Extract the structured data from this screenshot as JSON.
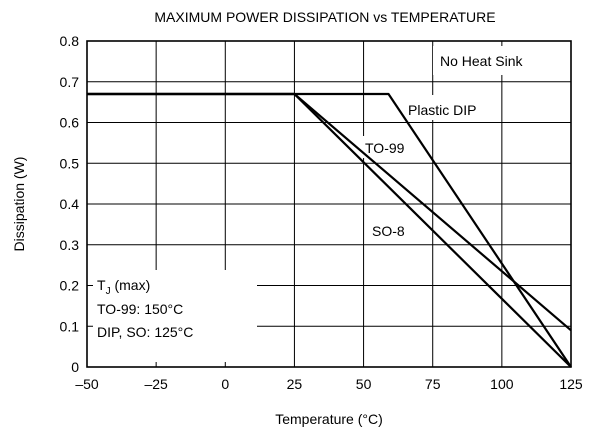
{
  "chart_data": {
    "type": "line",
    "title": "MAXIMUM POWER DISSIPATION vs TEMPERATURE",
    "xlabel": "Temperature (°C)",
    "ylabel": "Dissipation (W)",
    "xlim": [
      -50,
      125
    ],
    "ylim": [
      0,
      0.8
    ],
    "grid": true,
    "x_ticks": [
      {
        "value": -50,
        "label": "–50"
      },
      {
        "value": -25,
        "label": "–25"
      },
      {
        "value": 0,
        "label": "0"
      },
      {
        "value": 25,
        "label": "25"
      },
      {
        "value": 50,
        "label": "50"
      },
      {
        "value": 75,
        "label": "75"
      },
      {
        "value": 100,
        "label": "100"
      },
      {
        "value": 125,
        "label": "125"
      }
    ],
    "y_ticks": [
      {
        "value": 0,
        "label": "0"
      },
      {
        "value": 0.1,
        "label": "0.1"
      },
      {
        "value": 0.2,
        "label": "0.2"
      },
      {
        "value": 0.3,
        "label": "0.3"
      },
      {
        "value": 0.4,
        "label": "0.4"
      },
      {
        "value": 0.5,
        "label": "0.5"
      },
      {
        "value": 0.6,
        "label": "0.6"
      },
      {
        "value": 0.7,
        "label": "0.7"
      },
      {
        "value": 0.8,
        "label": "0.8"
      }
    ],
    "series": [
      {
        "name": "Plastic DIP",
        "x": [
          -50,
          59,
          125
        ],
        "y": [
          0.67,
          0.67,
          0
        ]
      },
      {
        "name": "TO-99",
        "x": [
          -50,
          25,
          125
        ],
        "y": [
          0.67,
          0.67,
          0.09
        ]
      },
      {
        "name": "SO-8",
        "x": [
          -50,
          25,
          125
        ],
        "y": [
          0.67,
          0.67,
          0
        ]
      }
    ],
    "annotations": {
      "heat_sink": "No Heat Sink",
      "tj_prefix": "T",
      "tj_sub": "J",
      "tj_suffix": " (max)",
      "tj_to99": "TO-99: 150°C",
      "tj_dip_so": "DIP, SO: 125°C"
    }
  }
}
